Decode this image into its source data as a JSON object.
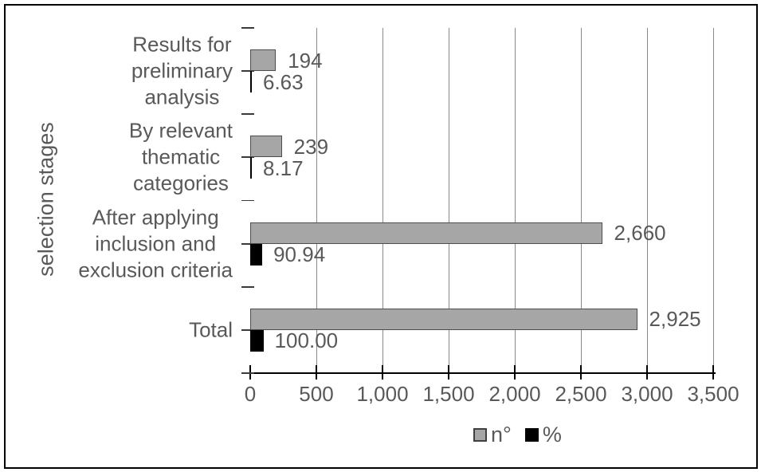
{
  "colors": {
    "bar_n_fill": "#a6a6a6",
    "bar_n_border": "#4d4d4d",
    "bar_pct_fill": "#000000",
    "text": "#595959",
    "gridline": "#8a8a8a",
    "axis": "#000000",
    "frame": "#000000",
    "background": "#ffffff"
  },
  "chart_data": {
    "type": "bar",
    "orientation": "horizontal",
    "title": "",
    "xlabel": "",
    "ylabel": "selection stages",
    "xlim": [
      0,
      3500
    ],
    "grid": true,
    "legend_position": "bottom",
    "x_ticks": [
      "0",
      "500",
      "1,000",
      "1,500",
      "2,000",
      "2,500",
      "3,000",
      "3,500"
    ],
    "x_tick_values": [
      0,
      500,
      1000,
      1500,
      2000,
      2500,
      3000,
      3500
    ],
    "categories": [
      "Results for preliminary analysis",
      "By relevant thematic categories",
      "After applying inclusion and exclusion criteria",
      "Total"
    ],
    "series": [
      {
        "name": "n°",
        "values": [
          194,
          239,
          2660,
          2925
        ]
      },
      {
        "name": "%",
        "values": [
          6.63,
          8.17,
          90.94,
          100.0
        ]
      }
    ],
    "rows": [
      {
        "label_lines": "Results for\npreliminary\nanalysis",
        "n": 194,
        "pct": 6.63,
        "n_label": "194",
        "pct_label": "6.63"
      },
      {
        "label_lines": "By relevant\nthematic\ncategories",
        "n": 239,
        "pct": 8.17,
        "n_label": "239",
        "pct_label": "8.17"
      },
      {
        "label_lines": "After applying\ninclusion and\nexclusion criteria",
        "n": 2660,
        "pct": 90.94,
        "n_label": "2,660",
        "pct_label": "90.94"
      },
      {
        "label_lines": "Total",
        "n": 2925,
        "pct": 100,
        "n_label": "2,925",
        "pct_label": "100.00"
      }
    ]
  },
  "legend": {
    "items": [
      {
        "label": "n°",
        "color": "#a6a6a6"
      },
      {
        "label": "%",
        "color": "#000000"
      }
    ]
  }
}
